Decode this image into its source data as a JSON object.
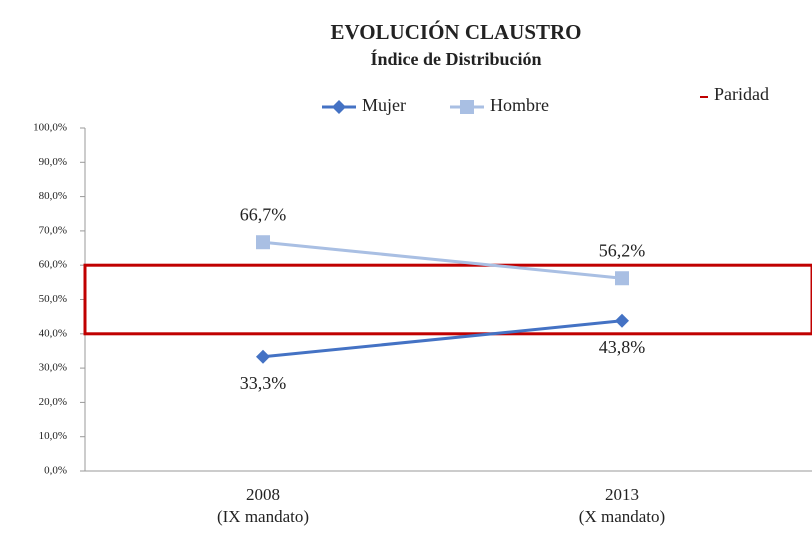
{
  "chart_data": {
    "type": "line",
    "title": "EVOLUCIÓN CLAUSTRO",
    "subtitle": "Índice de Distribución",
    "categories": [
      [
        "2008",
        "(IX mandato)"
      ],
      [
        "2013",
        "(X mandato)"
      ]
    ],
    "series": [
      {
        "name": "Mujer",
        "color": "#4472c4",
        "marker": "diamond",
        "values": [
          33.3,
          43.8
        ],
        "value_labels": [
          "33,3%",
          "43,8%"
        ]
      },
      {
        "name": "Hombre",
        "color": "#a9bfe3",
        "marker": "square",
        "values": [
          66.7,
          56.2
        ],
        "value_labels": [
          "66,7%",
          "56,2%"
        ]
      }
    ],
    "bands": [
      {
        "name": "Paridad",
        "from": 40,
        "to": 60,
        "color": "#c00000"
      }
    ],
    "ylim": [
      0,
      100
    ],
    "yticks": [
      {
        "value": 0,
        "label": "0,0%"
      },
      {
        "value": 10,
        "label": "10,0%"
      },
      {
        "value": 20,
        "label": "20,0%"
      },
      {
        "value": 30,
        "label": "30,0%"
      },
      {
        "value": 40,
        "label": "40,0%"
      },
      {
        "value": 50,
        "label": "50,0%"
      },
      {
        "value": 60,
        "label": "60,0%"
      },
      {
        "value": 70,
        "label": "70,0%"
      },
      {
        "value": 80,
        "label": "80,0%"
      },
      {
        "value": 90,
        "label": "90,0%"
      },
      {
        "value": 100,
        "label": "100,0%"
      }
    ],
    "grid": false
  }
}
